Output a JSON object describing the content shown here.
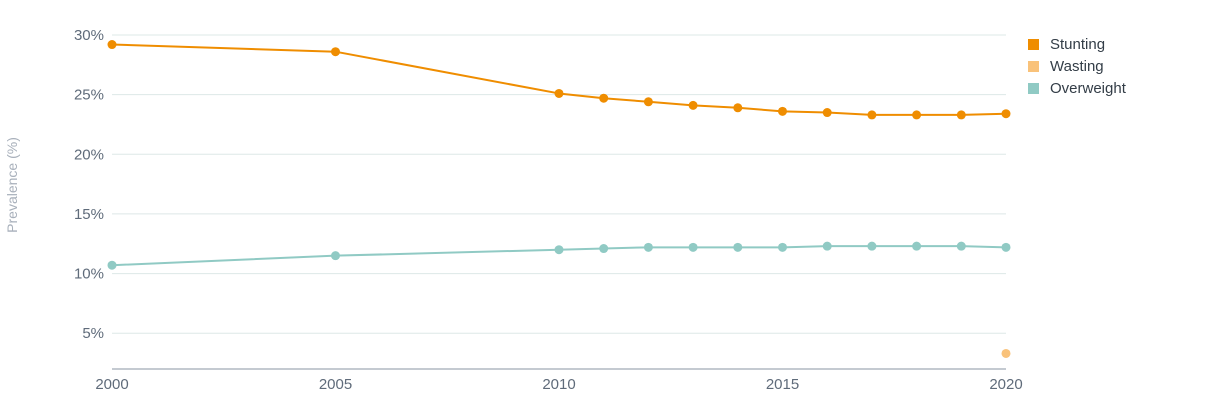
{
  "chart_data": {
    "type": "line",
    "title": "",
    "xlabel": "",
    "ylabel": "Prevalence (%)",
    "x_ticks": [
      "2000",
      "2005",
      "2010",
      "2015",
      "2020"
    ],
    "y_ticks": [
      "5%",
      "10%",
      "15%",
      "20%",
      "25%",
      "30%"
    ],
    "xlim": [
      2000,
      2020
    ],
    "ylim": [
      2,
      30
    ],
    "grid": true,
    "legend_position": "right",
    "series": [
      {
        "name": "Stunting",
        "color": "#ef8d00",
        "x": [
          2000,
          2005,
          2010,
          2011,
          2012,
          2013,
          2014,
          2015,
          2016,
          2017,
          2018,
          2019,
          2020
        ],
        "values": [
          29.2,
          28.6,
          25.1,
          24.7,
          24.4,
          24.1,
          23.9,
          23.6,
          23.5,
          23.3,
          23.3,
          23.3,
          23.4
        ]
      },
      {
        "name": "Wasting",
        "color": "#f9c27a",
        "x": [
          2020
        ],
        "values": [
          3.3
        ]
      },
      {
        "name": "Overweight",
        "color": "#90cac4",
        "x": [
          2000,
          2005,
          2010,
          2011,
          2012,
          2013,
          2014,
          2015,
          2016,
          2017,
          2018,
          2019,
          2020
        ],
        "values": [
          10.7,
          11.5,
          12.0,
          12.1,
          12.2,
          12.2,
          12.2,
          12.2,
          12.3,
          12.3,
          12.3,
          12.3,
          12.2
        ]
      }
    ]
  }
}
